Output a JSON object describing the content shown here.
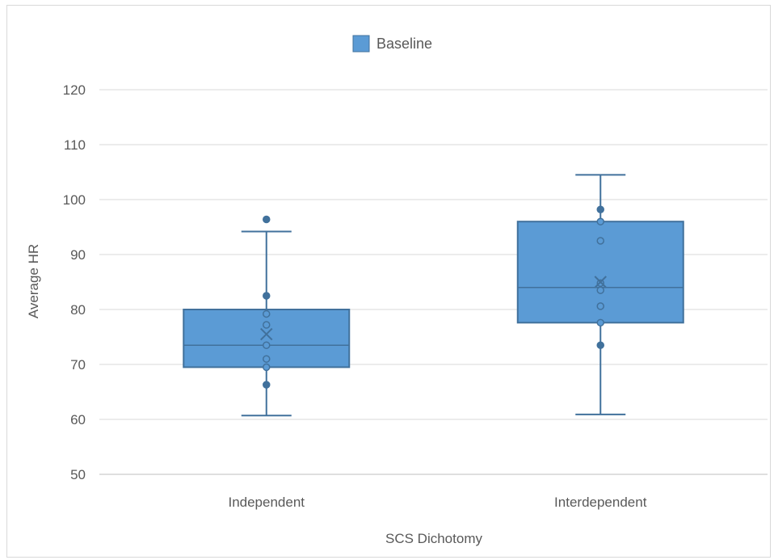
{
  "chart_data": {
    "type": "box",
    "title": "",
    "xlabel": "SCS Dichotomy",
    "ylabel": "Average HR",
    "ylim": [
      50,
      120
    ],
    "yticks": [
      50,
      60,
      70,
      80,
      90,
      100,
      110,
      120
    ],
    "grid": true,
    "legend_position": "top",
    "series": [
      {
        "name": "Baseline",
        "color": "#5b9bd5",
        "edge_color": "#41719c",
        "boxes": [
          {
            "category": "Independent",
            "whisker_low": 60.7,
            "q1": 69.5,
            "median": 73.5,
            "q3": 80.0,
            "whisker_high": 94.2,
            "mean": 75.5,
            "points": [
              96.4,
              82.5,
              79.2,
              77.2,
              73.5,
              71.0,
              69.5,
              66.3
            ]
          },
          {
            "category": "Interdependent",
            "whisker_low": 60.9,
            "q1": 77.6,
            "median": 84.0,
            "q3": 96.0,
            "whisker_high": 104.5,
            "mean": 85.0,
            "points": [
              98.2,
              96.0,
              92.5,
              84.8,
              83.5,
              80.6,
              77.6,
              73.5
            ]
          }
        ]
      }
    ]
  }
}
